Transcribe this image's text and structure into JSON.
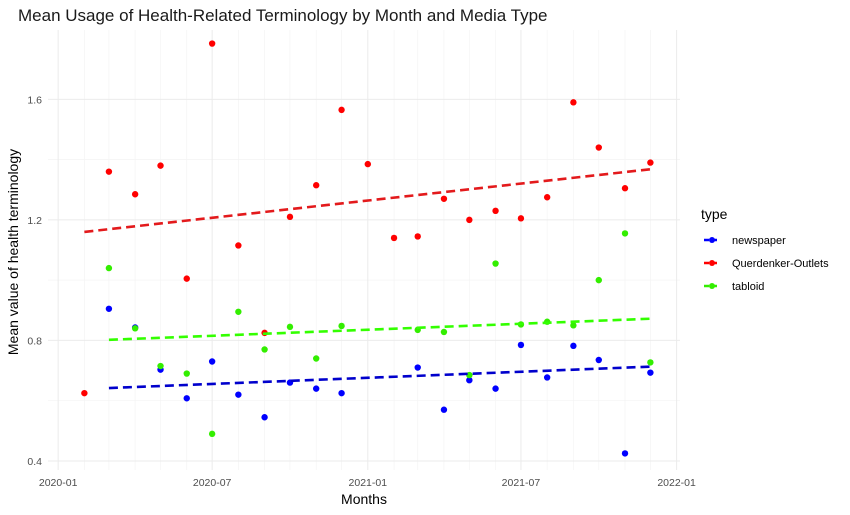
{
  "chart_data": {
    "type": "scatter",
    "title": "Mean Usage of Health-Related Terminology by Month and Media Type",
    "xlabel": "Months",
    "ylabel": "Mean value of health terminology",
    "x_axis_type": "date",
    "xlim": [
      "2019-12-20",
      "2022-01-05"
    ],
    "ylim": [
      0.37,
      1.83
    ],
    "x_ticks": [
      "2020-01",
      "2020-07",
      "2021-01",
      "2021-07",
      "2022-01"
    ],
    "y_ticks": [
      0.4,
      0.8,
      1.2,
      1.6
    ],
    "y_tick_labels": [
      "0.4",
      "0.8",
      "1.2",
      "1.6"
    ],
    "grid": true,
    "legend": {
      "title": "type",
      "position": "right",
      "entries": [
        "newspaper",
        "Querdenker-Outlets",
        "tabloid"
      ]
    },
    "series": [
      {
        "name": "newspaper",
        "color": "#0000ff",
        "trend_color": "#0000cc",
        "x": [
          "2020-03-01",
          "2020-04-01",
          "2020-05-01",
          "2020-06-01",
          "2020-07-01",
          "2020-08-01",
          "2020-09-01",
          "2020-10-01",
          "2020-11-01",
          "2020-12-01",
          "2021-03-01",
          "2021-04-01",
          "2021-05-01",
          "2021-06-01",
          "2021-07-01",
          "2021-08-01",
          "2021-09-01",
          "2021-10-01",
          "2021-11-01",
          "2021-12-01"
        ],
        "y": [
          0.905,
          0.843,
          0.703,
          0.608,
          0.73,
          0.62,
          0.545,
          0.66,
          0.64,
          0.625,
          0.71,
          0.57,
          0.668,
          0.64,
          0.785,
          0.677,
          0.782,
          0.735,
          0.425,
          0.693
        ],
        "trend": {
          "x": [
            "2020-03-01",
            "2021-12-01"
          ],
          "y": [
            0.642,
            0.713
          ]
        }
      },
      {
        "name": "Querdenker-Outlets",
        "color": "#ff0000",
        "trend_color": "#e31a1c",
        "x": [
          "2020-02-01",
          "2020-03-01",
          "2020-04-01",
          "2020-05-01",
          "2020-06-01",
          "2020-07-01",
          "2020-08-01",
          "2020-09-01",
          "2020-10-01",
          "2020-11-01",
          "2020-12-01",
          "2021-01-01",
          "2021-02-01",
          "2021-03-01",
          "2021-04-01",
          "2021-05-01",
          "2021-06-01",
          "2021-07-01",
          "2021-08-01",
          "2021-09-01",
          "2021-10-01",
          "2021-11-01",
          "2021-12-01"
        ],
        "y": [
          0.625,
          1.36,
          1.285,
          1.38,
          1.005,
          1.785,
          1.115,
          0.825,
          1.21,
          1.315,
          1.565,
          1.385,
          1.14,
          1.145,
          1.27,
          1.2,
          1.23,
          1.205,
          1.275,
          1.59,
          1.44,
          1.305,
          1.39
        ],
        "trend": {
          "x": [
            "2020-02-01",
            "2021-12-01"
          ],
          "y": [
            1.16,
            1.368
          ]
        }
      },
      {
        "name": "tabloid",
        "color": "#33ee00",
        "trend_color": "#33ff00",
        "x": [
          "2020-03-01",
          "2020-04-01",
          "2020-05-01",
          "2020-06-01",
          "2020-07-01",
          "2020-08-01",
          "2020-09-01",
          "2020-10-01",
          "2020-11-01",
          "2020-12-01",
          "2021-03-01",
          "2021-04-01",
          "2021-05-01",
          "2021-06-01",
          "2021-07-01",
          "2021-08-01",
          "2021-09-01",
          "2021-10-01",
          "2021-11-01",
          "2021-12-01"
        ],
        "y": [
          1.04,
          0.84,
          0.715,
          0.69,
          0.49,
          0.895,
          0.77,
          0.845,
          0.74,
          0.848,
          0.835,
          0.828,
          0.685,
          1.055,
          0.853,
          0.862,
          0.85,
          1.0,
          1.155,
          0.727
        ],
        "trend": {
          "x": [
            "2020-03-01",
            "2021-12-01"
          ],
          "y": [
            0.802,
            0.872
          ]
        }
      }
    ]
  }
}
